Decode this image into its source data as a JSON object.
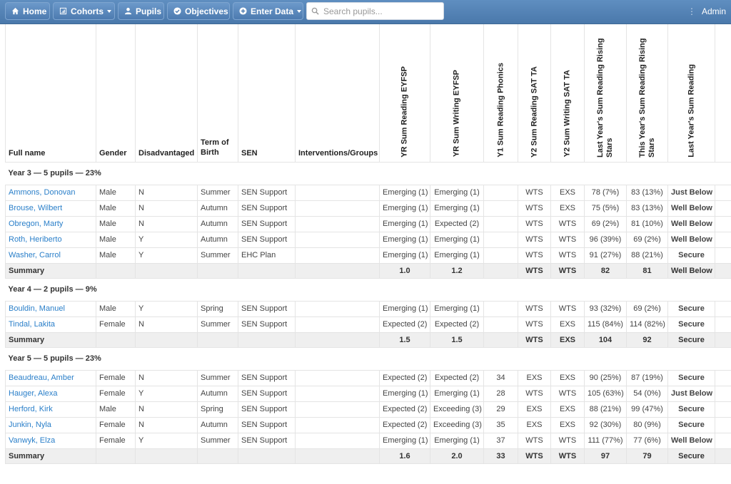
{
  "nav": {
    "home": "Home",
    "cohorts": "Cohorts",
    "pupils": "Pupils",
    "objectives": "Objectives",
    "enter_data": "Enter Data",
    "search_placeholder": "Search pupils...",
    "user": "Admin"
  },
  "colors": {
    "navbar": "#4a78ab",
    "emerging": "#f0861a",
    "expected": "#3fae36",
    "exceeding": "#2a9bd6",
    "below": "#e4332f",
    "secure": "#5aae2a"
  },
  "columns": {
    "full_name": "Full name",
    "gender": "Gender",
    "disadvantaged": "Disadvantaged",
    "term_of_birth": "Term of Birth",
    "sen": "SEN",
    "interventions": "Interventions/Groups",
    "yr_reading": "YR Sum Reading EYFSP",
    "yr_writing": "YR Sum Writing EYFSP",
    "y1_phonics": "Y1 Sum Reading Phonics",
    "y2_reading": "Y2 Sum Reading SAT TA",
    "y2_writing": "Y2 Sum Writing SAT TA",
    "last_stars": "Last Year's Sum Reading Rising Stars",
    "this_stars": "This Year's Sum Reading Rising Stars",
    "last_reading": "Last Year's Sum Reading"
  },
  "groups": [
    {
      "title": "Year 3 — 5 pupils — 23%",
      "pupils": [
        {
          "name": "Ammons, Donovan",
          "gender": "Male",
          "dis": "N",
          "term": "Summer",
          "sen": "SEN Support",
          "yr_r": "Emerging (1)",
          "yr_w": "Emerging (1)",
          "ph": "",
          "y2r": "WTS",
          "y2w": "EXS",
          "last": "78 (7%)",
          "this": "83 (13%)",
          "lr": "Just Below"
        },
        {
          "name": "Brouse, Wilbert",
          "gender": "Male",
          "dis": "N",
          "term": "Autumn",
          "sen": "SEN Support",
          "yr_r": "Emerging (1)",
          "yr_w": "Emerging (1)",
          "ph": "",
          "y2r": "WTS",
          "y2w": "EXS",
          "last": "75 (5%)",
          "this": "83 (13%)",
          "lr": "Well Below"
        },
        {
          "name": "Obregon, Marty",
          "gender": "Male",
          "dis": "N",
          "term": "Autumn",
          "sen": "SEN Support",
          "yr_r": "Emerging (1)",
          "yr_w": "Expected (2)",
          "ph": "",
          "y2r": "WTS",
          "y2w": "WTS",
          "last": "69 (2%)",
          "this": "81 (10%)",
          "lr": "Well Below"
        },
        {
          "name": "Roth, Heriberto",
          "gender": "Male",
          "dis": "Y",
          "term": "Autumn",
          "sen": "SEN Support",
          "yr_r": "Emerging (1)",
          "yr_w": "Emerging (1)",
          "ph": "",
          "y2r": "WTS",
          "y2w": "WTS",
          "last": "96 (39%)",
          "this": "69 (2%)",
          "lr": "Well Below"
        },
        {
          "name": "Washer, Carrol",
          "gender": "Male",
          "dis": "Y",
          "term": "Summer",
          "sen": "EHC Plan",
          "yr_r": "Emerging (1)",
          "yr_w": "Emerging (1)",
          "ph": "",
          "y2r": "WTS",
          "y2w": "WTS",
          "last": "91 (27%)",
          "this": "88 (21%)",
          "lr": "Secure"
        }
      ],
      "summary": {
        "label": "Summary",
        "yr_r": "1.0",
        "yr_w": "1.2",
        "ph": "",
        "y2r": "WTS",
        "y2w": "WTS",
        "last": "82",
        "this": "81",
        "lr": "Well Below"
      }
    },
    {
      "title": "Year 4 — 2 pupils — 9%",
      "pupils": [
        {
          "name": "Bouldin, Manuel",
          "gender": "Male",
          "dis": "Y",
          "term": "Spring",
          "sen": "SEN Support",
          "yr_r": "Emerging (1)",
          "yr_w": "Emerging (1)",
          "ph": "",
          "y2r": "WTS",
          "y2w": "WTS",
          "last": "93 (32%)",
          "this": "69 (2%)",
          "lr": "Secure"
        },
        {
          "name": "Tindal, Lakita",
          "gender": "Female",
          "dis": "N",
          "term": "Summer",
          "sen": "SEN Support",
          "yr_r": "Expected (2)",
          "yr_w": "Expected (2)",
          "ph": "",
          "y2r": "WTS",
          "y2w": "EXS",
          "last": "115 (84%)",
          "this": "114 (82%)",
          "lr": "Secure"
        }
      ],
      "summary": {
        "label": "Summary",
        "yr_r": "1.5",
        "yr_w": "1.5",
        "ph": "",
        "y2r": "WTS",
        "y2w": "EXS",
        "last": "104",
        "this": "92",
        "lr": "Secure"
      }
    },
    {
      "title": "Year 5 — 5 pupils — 23%",
      "pupils": [
        {
          "name": "Beaudreau, Amber",
          "gender": "Female",
          "dis": "N",
          "term": "Summer",
          "sen": "SEN Support",
          "yr_r": "Expected (2)",
          "yr_w": "Expected (2)",
          "ph": "34",
          "y2r": "EXS",
          "y2w": "EXS",
          "last": "90 (25%)",
          "this": "87 (19%)",
          "lr": "Secure"
        },
        {
          "name": "Hauger, Alexa",
          "gender": "Female",
          "dis": "Y",
          "term": "Autumn",
          "sen": "SEN Support",
          "yr_r": "Emerging (1)",
          "yr_w": "Emerging (1)",
          "ph": "28",
          "y2r": "WTS",
          "y2w": "WTS",
          "last": "105 (63%)",
          "this": "54 (0%)",
          "lr": "Just Below"
        },
        {
          "name": "Herford, Kirk",
          "gender": "Male",
          "dis": "N",
          "term": "Spring",
          "sen": "SEN Support",
          "yr_r": "Expected (2)",
          "yr_w": "Exceeding (3)",
          "ph": "29",
          "y2r": "EXS",
          "y2w": "EXS",
          "last": "88 (21%)",
          "this": "99 (47%)",
          "lr": "Secure"
        },
        {
          "name": "Junkin, Nyla",
          "gender": "Female",
          "dis": "N",
          "term": "Autumn",
          "sen": "SEN Support",
          "yr_r": "Expected (2)",
          "yr_w": "Exceeding (3)",
          "ph": "35",
          "y2r": "EXS",
          "y2w": "EXS",
          "last": "92 (30%)",
          "this": "80 (9%)",
          "lr": "Secure"
        },
        {
          "name": "Vanwyk, Elza",
          "gender": "Female",
          "dis": "Y",
          "term": "Summer",
          "sen": "SEN Support",
          "yr_r": "Emerging (1)",
          "yr_w": "Emerging (1)",
          "ph": "37",
          "y2r": "WTS",
          "y2w": "WTS",
          "last": "111 (77%)",
          "this": "77 (6%)",
          "lr": "Well Below"
        }
      ],
      "summary": {
        "label": "Summary",
        "yr_r": "1.6",
        "yr_w": "2.0",
        "ph": "33",
        "y2r": "WTS",
        "y2w": "WTS",
        "last": "97",
        "this": "79",
        "lr": "Secure"
      }
    }
  ]
}
